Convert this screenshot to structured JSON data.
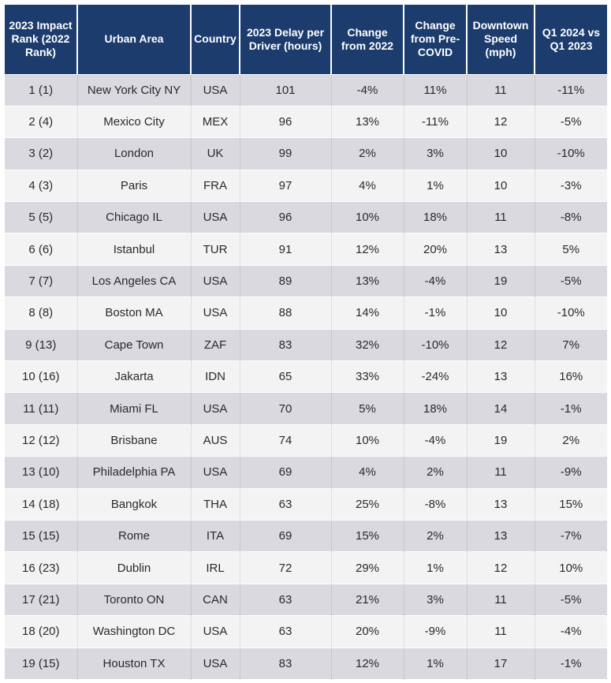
{
  "table": {
    "headers": [
      "2023 Impact Rank (2022 Rank)",
      "Urban Area",
      "Country",
      "2023 Delay per Driver (hours)",
      "Change from 2022",
      "Change from Pre-COVID",
      "Downtown Speed (mph)",
      "Q1 2024 vs Q1 2023"
    ],
    "rows": [
      [
        "1 (1)",
        "New York City NY",
        "USA",
        "101",
        "-4%",
        "11%",
        "11",
        "-11%"
      ],
      [
        "2 (4)",
        "Mexico City",
        "MEX",
        "96",
        "13%",
        "-11%",
        "12",
        "-5%"
      ],
      [
        "3 (2)",
        "London",
        "UK",
        "99",
        "2%",
        "3%",
        "10",
        "-10%"
      ],
      [
        "4 (3)",
        "Paris",
        "FRA",
        "97",
        "4%",
        "1%",
        "10",
        "-3%"
      ],
      [
        "5 (5)",
        "Chicago IL",
        "USA",
        "96",
        "10%",
        "18%",
        "11",
        "-8%"
      ],
      [
        "6 (6)",
        "Istanbul",
        "TUR",
        "91",
        "12%",
        "20%",
        "13",
        "5%"
      ],
      [
        "7 (7)",
        "Los Angeles CA",
        "USA",
        "89",
        "13%",
        "-4%",
        "19",
        "-5%"
      ],
      [
        "8 (8)",
        "Boston MA",
        "USA",
        "88",
        "14%",
        "-1%",
        "10",
        "-10%"
      ],
      [
        "9 (13)",
        "Cape Town",
        "ZAF",
        "83",
        "32%",
        "-10%",
        "12",
        "7%"
      ],
      [
        "10 (16)",
        "Jakarta",
        "IDN",
        "65",
        "33%",
        "-24%",
        "13",
        "16%"
      ],
      [
        "11 (11)",
        "Miami FL",
        "USA",
        "70",
        "5%",
        "18%",
        "14",
        "-1%"
      ],
      [
        "12 (12)",
        "Brisbane",
        "AUS",
        "74",
        "10%",
        "-4%",
        "19",
        "2%"
      ],
      [
        "13 (10)",
        "Philadelphia PA",
        "USA",
        "69",
        "4%",
        "2%",
        "11",
        "-9%"
      ],
      [
        "14 (18)",
        "Bangkok",
        "THA",
        "63",
        "25%",
        "-8%",
        "13",
        "15%"
      ],
      [
        "15 (15)",
        "Rome",
        "ITA",
        "69",
        "15%",
        "2%",
        "13",
        "-7%"
      ],
      [
        "16 (23)",
        "Dublin",
        "IRL",
        "72",
        "29%",
        "1%",
        "12",
        "10%"
      ],
      [
        "17 (21)",
        "Toronto ON",
        "CAN",
        "63",
        "21%",
        "3%",
        "11",
        "-5%"
      ],
      [
        "18 (20)",
        "Washington DC",
        "USA",
        "63",
        "20%",
        "-9%",
        "11",
        "-4%"
      ],
      [
        "19 (15)",
        "Houston TX",
        "USA",
        "83",
        "12%",
        "1%",
        "17",
        "-1%"
      ]
    ]
  }
}
